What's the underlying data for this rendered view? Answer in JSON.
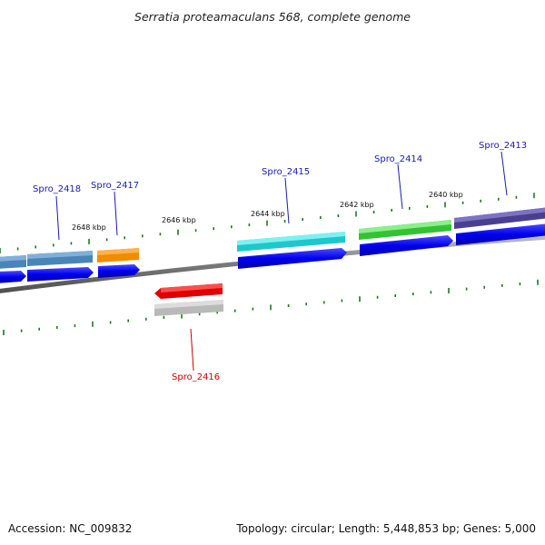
{
  "title": "Serratia proteamaculans 568, complete genome",
  "footer": {
    "accession": "Accession: NC_009832",
    "summary": "Topology: circular; Length: 5,448,853 bp; Genes: 5,000"
  },
  "scale_labels": [
    "2648 kbp",
    "2646 kbp",
    "2644 kbp",
    "2642 kbp",
    "2640 kbp"
  ],
  "genes": [
    {
      "label": "Spro_2418",
      "color": "#4a85b8",
      "label_color": "#1a1ab0"
    },
    {
      "label": "Spro_2417",
      "color": "#f08c00",
      "label_color": "#1a1ab0"
    },
    {
      "label": "Spro_2416",
      "color": "#e00000",
      "label_color": "#cc0000"
    },
    {
      "label": "Spro_2415",
      "color": "#1cc8cc",
      "label_color": "#1a1ab0"
    },
    {
      "label": "Spro_2414",
      "color": "#33c233",
      "label_color": "#1a1ab0"
    },
    {
      "label": "Spro_2413",
      "color": "#4a3f8f",
      "label_color": "#1a1ab0"
    }
  ],
  "colors": {
    "cds": "#0000ee",
    "backbone": "#808080",
    "tick": "#1e7a1e",
    "gray_feature": "#b9b9b9"
  }
}
